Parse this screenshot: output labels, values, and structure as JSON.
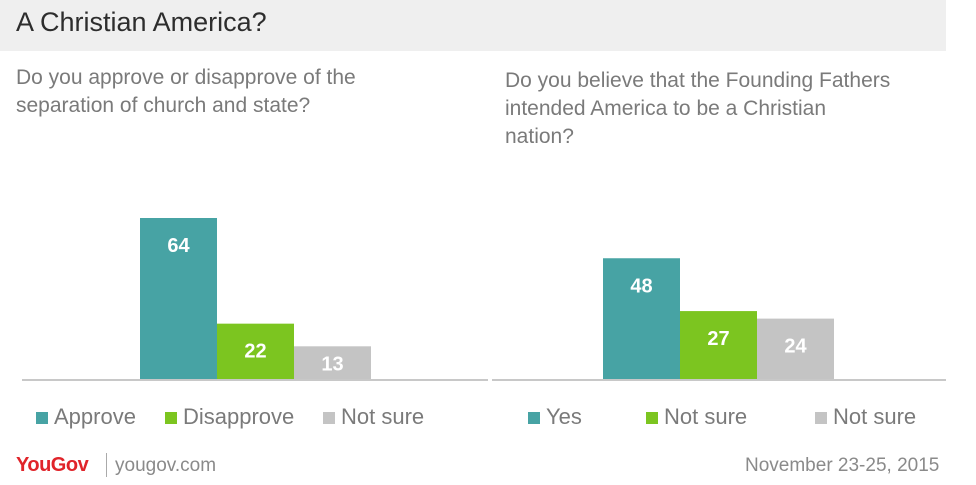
{
  "title": "A Christian America?",
  "footer": {
    "brand": "YouGov",
    "site": "yougov.com",
    "date": "November 23-25, 2015"
  },
  "colors": {
    "teal": "#47a3a4",
    "green": "#7cc520",
    "gray": "#c4c4c4",
    "header_bg": "#efefef",
    "brand_red": "#e0242a"
  },
  "chart_data": [
    {
      "type": "bar",
      "title": "Do you approve or disapprove of the\nseparation of church and state?",
      "categories": [
        "Approve",
        "Disapprove",
        "Not sure"
      ],
      "values": [
        64,
        22,
        13
      ],
      "colors": [
        "#47a3a4",
        "#7cc520",
        "#c4c4c4"
      ],
      "legend": [
        "Approve",
        "Disapprove",
        "Not sure"
      ],
      "ylim": [
        0,
        64
      ],
      "grid": false,
      "legend_position": "bottom"
    },
    {
      "type": "bar",
      "title": "Do you believe that the Founding Fathers\nintended America to be a Christian\nnation?",
      "categories": [
        "Yes",
        "Not sure",
        "Not sure"
      ],
      "values": [
        48,
        27,
        24
      ],
      "colors": [
        "#47a3a4",
        "#7cc520",
        "#c4c4c4"
      ],
      "legend": [
        "Yes",
        "Not sure",
        "Not sure"
      ],
      "ylim": [
        0,
        64
      ],
      "grid": false,
      "legend_position": "bottom"
    }
  ]
}
